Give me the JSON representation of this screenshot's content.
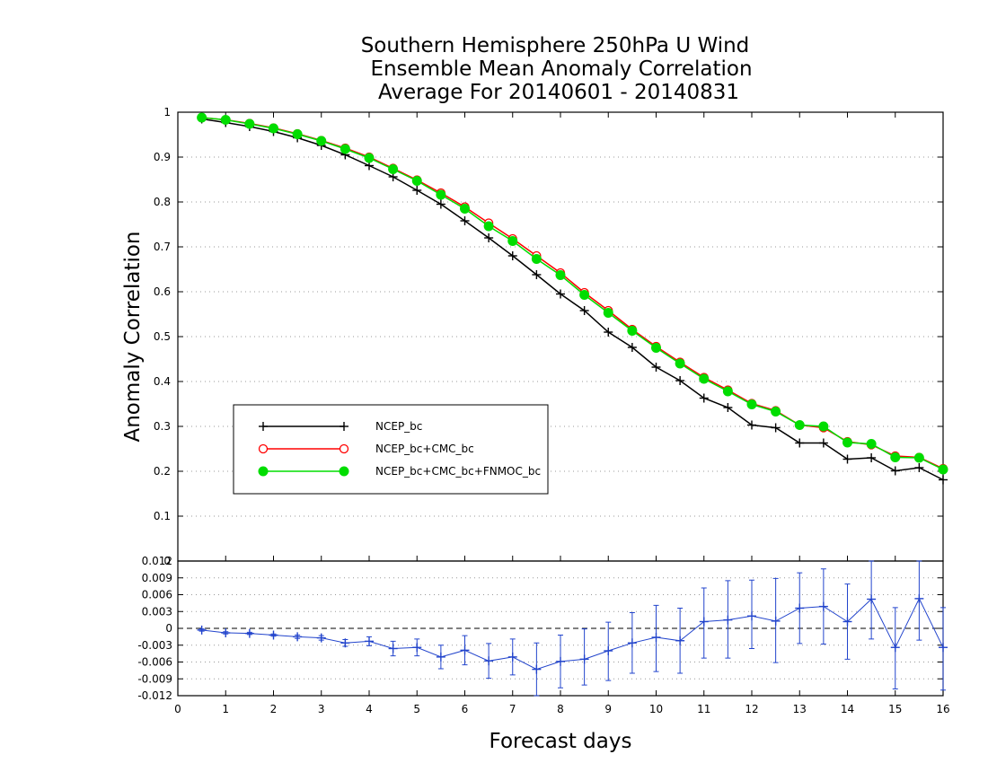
{
  "chart_data": [
    {
      "type": "line",
      "title": [
        "Southern Hemisphere 250hPa U Wind",
        "Ensemble Mean Anomaly Correlation",
        "Average For 20140601 - 20140831"
      ],
      "xlabel": "Forecast days",
      "ylabel": "Anomaly Correlation",
      "xlim": [
        0,
        16
      ],
      "ylim": [
        0,
        1
      ],
      "x_ticks": [
        "0",
        "1",
        "2",
        "3",
        "4",
        "5",
        "6",
        "7",
        "8",
        "9",
        "10",
        "11",
        "12",
        "13",
        "14",
        "15",
        "16"
      ],
      "y_ticks": [
        "0",
        "0.1",
        "0.2",
        "0.3",
        "0.4",
        "0.5",
        "0.6",
        "0.7",
        "0.8",
        "0.9",
        "1"
      ],
      "grid": "horizontal dotted",
      "legend_position": "left",
      "x": [
        0.5,
        1,
        1.5,
        2,
        2.5,
        3,
        3.5,
        4,
        4.5,
        5,
        5.5,
        6,
        6.5,
        7,
        7.5,
        8,
        8.5,
        9,
        9.5,
        10,
        10.5,
        11,
        11.5,
        12,
        12.5,
        13,
        13.5,
        14,
        14.5,
        15,
        15.5,
        16
      ],
      "series": [
        {
          "name": "NCEP_bc",
          "color": "#000000",
          "marker": "plus",
          "values": [
            0.985,
            0.977,
            0.968,
            0.957,
            0.943,
            0.926,
            0.905,
            0.881,
            0.856,
            0.826,
            0.795,
            0.758,
            0.72,
            0.68,
            0.638,
            0.595,
            0.558,
            0.51,
            0.476,
            0.432,
            0.402,
            0.363,
            0.342,
            0.303,
            0.297,
            0.263,
            0.263,
            0.227,
            0.23,
            0.201,
            0.208,
            0.181
          ]
        },
        {
          "name": "NCEP_bc+CMC_bc",
          "color": "#ff0000",
          "marker": "circle-open",
          "values": [
            0.988,
            0.983,
            0.975,
            0.965,
            0.952,
            0.937,
            0.92,
            0.9,
            0.875,
            0.849,
            0.82,
            0.789,
            0.753,
            0.718,
            0.68,
            0.642,
            0.598,
            0.558,
            0.516,
            0.478,
            0.443,
            0.409,
            0.381,
            0.351,
            0.335,
            0.303,
            0.297,
            0.266,
            0.259,
            0.234,
            0.231,
            0.206
          ]
        },
        {
          "name": "NCEP_bc+CMC_bc+FNMOC_bc",
          "color": "#00dd00",
          "marker": "circle-filled",
          "values": [
            0.988,
            0.983,
            0.974,
            0.964,
            0.951,
            0.936,
            0.918,
            0.898,
            0.873,
            0.847,
            0.816,
            0.785,
            0.746,
            0.713,
            0.673,
            0.637,
            0.593,
            0.553,
            0.513,
            0.475,
            0.44,
            0.406,
            0.378,
            0.349,
            0.333,
            0.303,
            0.3,
            0.264,
            0.261,
            0.231,
            0.23,
            0.204
          ]
        }
      ]
    },
    {
      "type": "line",
      "xlim": [
        0,
        16
      ],
      "ylim": [
        -0.012,
        0.012
      ],
      "y_ticks": [
        "-0.012",
        "-0.009",
        "-0.006",
        "-0.003",
        "0",
        "0.003",
        "0.006",
        "0.009",
        "0.012"
      ],
      "grid": "horizontal dotted",
      "reference_line": 0,
      "x": [
        0.5,
        1,
        1.5,
        2,
        2.5,
        3,
        3.5,
        4,
        4.5,
        5,
        5.5,
        6,
        6.5,
        7,
        7.5,
        8,
        8.5,
        9,
        9.5,
        10,
        10.5,
        11,
        11.5,
        12,
        12.5,
        13,
        13.5,
        14,
        14.5,
        15,
        15.5,
        16
      ],
      "series": [
        {
          "color": "#2244cc",
          "values": [
            -0.0003,
            -0.0008,
            -0.0009,
            -0.0012,
            -0.0015,
            -0.0017,
            -0.0026,
            -0.0023,
            -0.0036,
            -0.0034,
            -0.0051,
            -0.0039,
            -0.0058,
            -0.0051,
            -0.0073,
            -0.0059,
            -0.0055,
            -0.004,
            -0.0026,
            -0.0016,
            -0.0022,
            0.0012,
            0.0015,
            0.0022,
            0.0013,
            0.0036,
            0.0039,
            0.0012,
            0.0052,
            -0.0034,
            0.0053,
            -0.0034
          ],
          "error_low": [
            -0.0005,
            -0.001,
            -0.0011,
            -0.0014,
            -0.0018,
            -0.0021,
            -0.0032,
            -0.0031,
            -0.0049,
            -0.0049,
            -0.0072,
            -0.0065,
            -0.0089,
            -0.0083,
            -0.012,
            -0.0106,
            -0.0101,
            -0.0093,
            -0.008,
            -0.0077,
            -0.008,
            -0.0053,
            -0.0053,
            -0.0036,
            -0.0061,
            -0.0027,
            -0.0028,
            -0.0055,
            -0.0019,
            -0.0108,
            -0.0021,
            -0.011
          ],
          "error_high": [
            -0.0001,
            -0.0006,
            -0.0007,
            -0.001,
            -0.0012,
            -0.0013,
            -0.002,
            -0.0015,
            -0.0023,
            -0.0019,
            -0.003,
            -0.0013,
            -0.0027,
            -0.0019,
            -0.0026,
            -0.0012,
            -0.0001,
            0.0011,
            0.0028,
            0.0041,
            0.0036,
            0.0072,
            0.0085,
            0.0086,
            0.0089,
            0.0099,
            0.0106,
            0.0079,
            0.0123,
            0.0037,
            0.0127,
            0.0037
          ]
        }
      ]
    }
  ]
}
